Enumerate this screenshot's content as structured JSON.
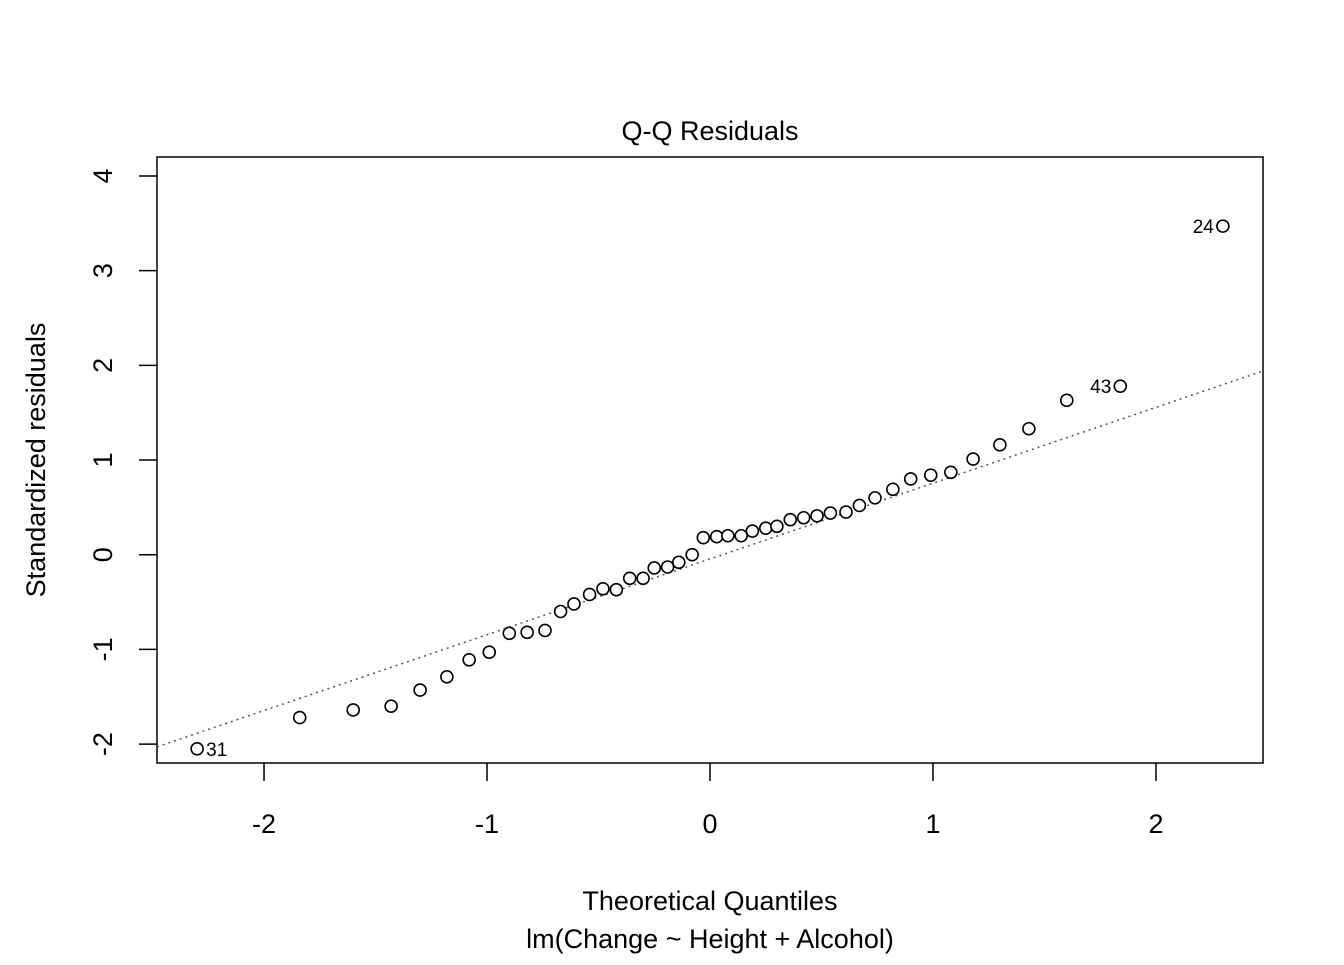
{
  "chart_data": {
    "type": "scatter",
    "title": "Q-Q Residuals",
    "xlabel": "Theoretical Quantiles",
    "subtitle": "lm(Change ~ Height + Alcohol)",
    "ylabel": "Standardized residuals",
    "xlim": [
      -2.48,
      2.48
    ],
    "ylim": [
      -2.2,
      4.2
    ],
    "x_ticks": [
      -2,
      -1,
      0,
      1,
      2
    ],
    "x_tick_labels": [
      "-2",
      "-1",
      "0",
      "1",
      "2"
    ],
    "y_ticks": [
      -2,
      -1,
      0,
      1,
      2,
      3,
      4
    ],
    "y_tick_labels": [
      "-2",
      "-1",
      "0",
      "1",
      "2",
      "3",
      "4"
    ],
    "grid": false,
    "reference_line": {
      "style": "dotted",
      "color": "#555555",
      "x": [
        -2.48,
        2.48
      ],
      "y": [
        -2.03,
        1.94
      ]
    },
    "points": [
      {
        "x": -2.3,
        "y": -2.05,
        "label": "31"
      },
      {
        "x": -1.84,
        "y": -1.72
      },
      {
        "x": -1.6,
        "y": -1.64
      },
      {
        "x": -1.43,
        "y": -1.6
      },
      {
        "x": -1.3,
        "y": -1.43
      },
      {
        "x": -1.18,
        "y": -1.29
      },
      {
        "x": -1.08,
        "y": -1.11
      },
      {
        "x": -0.99,
        "y": -1.03
      },
      {
        "x": -0.9,
        "y": -0.83
      },
      {
        "x": -0.82,
        "y": -0.82
      },
      {
        "x": -0.74,
        "y": -0.8
      },
      {
        "x": -0.67,
        "y": -0.6
      },
      {
        "x": -0.61,
        "y": -0.52
      },
      {
        "x": -0.54,
        "y": -0.42
      },
      {
        "x": -0.48,
        "y": -0.36
      },
      {
        "x": -0.42,
        "y": -0.37
      },
      {
        "x": -0.36,
        "y": -0.25
      },
      {
        "x": -0.3,
        "y": -0.25
      },
      {
        "x": -0.25,
        "y": -0.14
      },
      {
        "x": -0.19,
        "y": -0.13
      },
      {
        "x": -0.14,
        "y": -0.08
      },
      {
        "x": -0.08,
        "y": 0.0
      },
      {
        "x": -0.03,
        "y": 0.18
      },
      {
        "x": 0.03,
        "y": 0.19
      },
      {
        "x": 0.08,
        "y": 0.2
      },
      {
        "x": 0.14,
        "y": 0.2
      },
      {
        "x": 0.19,
        "y": 0.25
      },
      {
        "x": 0.25,
        "y": 0.28
      },
      {
        "x": 0.3,
        "y": 0.3
      },
      {
        "x": 0.36,
        "y": 0.37
      },
      {
        "x": 0.42,
        "y": 0.39
      },
      {
        "x": 0.48,
        "y": 0.41
      },
      {
        "x": 0.54,
        "y": 0.44
      },
      {
        "x": 0.61,
        "y": 0.45
      },
      {
        "x": 0.67,
        "y": 0.52
      },
      {
        "x": 0.74,
        "y": 0.6
      },
      {
        "x": 0.82,
        "y": 0.69
      },
      {
        "x": 0.9,
        "y": 0.8
      },
      {
        "x": 0.99,
        "y": 0.84
      },
      {
        "x": 1.08,
        "y": 0.87
      },
      {
        "x": 1.18,
        "y": 1.01
      },
      {
        "x": 1.3,
        "y": 1.16
      },
      {
        "x": 1.43,
        "y": 1.33
      },
      {
        "x": 1.6,
        "y": 1.63
      },
      {
        "x": 1.84,
        "y": 1.78,
        "label": "43"
      },
      {
        "x": 2.3,
        "y": 3.47,
        "label": "24"
      }
    ]
  }
}
